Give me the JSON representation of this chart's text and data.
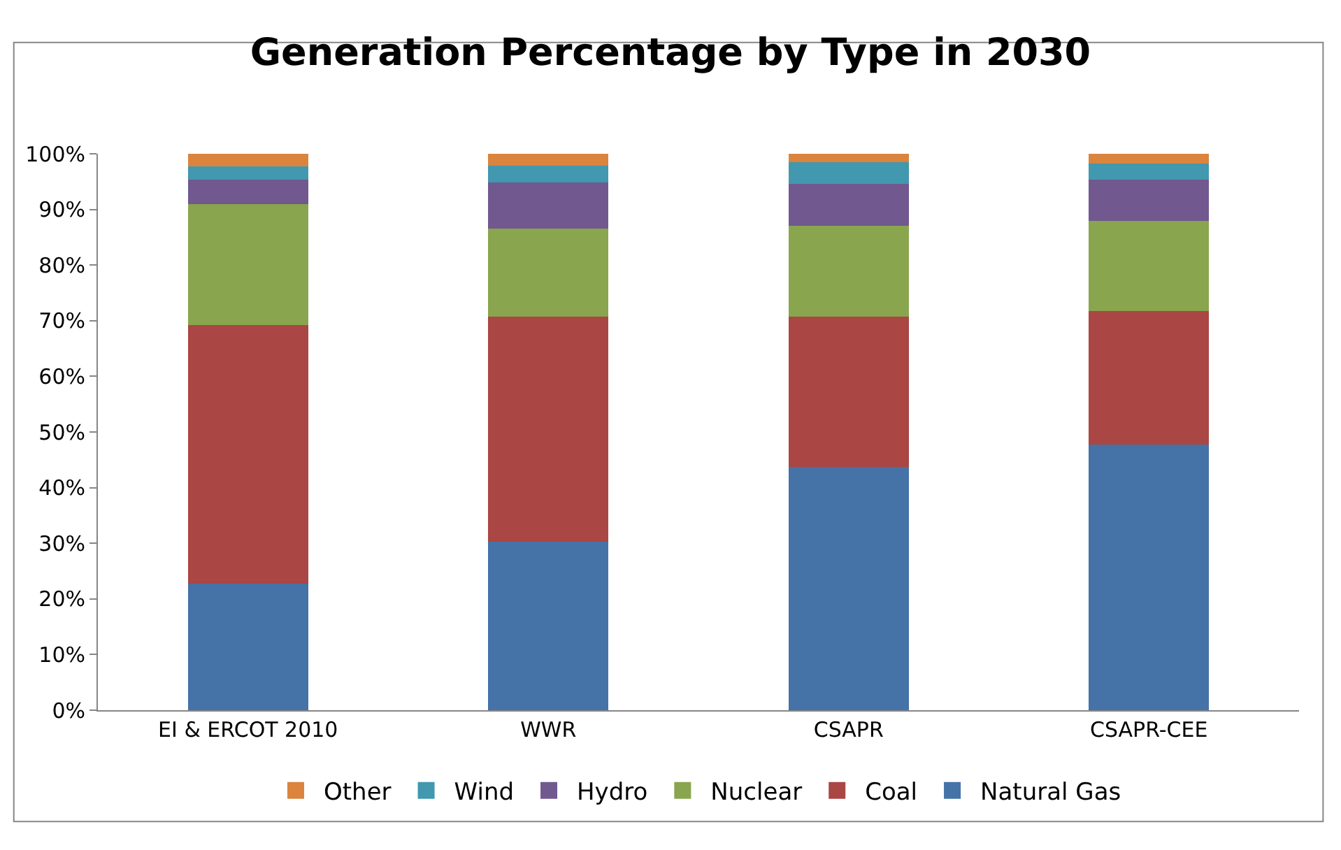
{
  "chart_data": {
    "type": "bar",
    "title": "Generation Percentage by Type in 2030",
    "categories": [
      "EI & ERCOT 2010",
      "WWR",
      "CSAPR",
      "CSAPR-CEE"
    ],
    "stacked": true,
    "series": [
      {
        "name": "Natural Gas",
        "color": "#4572a7",
        "values": [
          22.7,
          30.3,
          43.7,
          47.8
        ]
      },
      {
        "name": "Coal",
        "color": "#aa4643",
        "values": [
          46.5,
          40.4,
          27.0,
          23.9
        ]
      },
      {
        "name": "Nuclear",
        "color": "#89a54e",
        "values": [
          21.8,
          15.9,
          16.4,
          16.2
        ]
      },
      {
        "name": "Hydro",
        "color": "#71588f",
        "values": [
          4.4,
          8.3,
          7.5,
          7.5
        ]
      },
      {
        "name": "Wind",
        "color": "#4198af",
        "values": [
          2.3,
          3.0,
          3.9,
          2.8
        ]
      },
      {
        "name": "Other",
        "color": "#db843d",
        "values": [
          2.3,
          2.1,
          1.5,
          1.8
        ]
      }
    ],
    "ylim": [
      0,
      100
    ],
    "yticks": [
      {
        "value": 0,
        "label": "0%"
      },
      {
        "value": 10,
        "label": "10%"
      },
      {
        "value": 20,
        "label": "20%"
      },
      {
        "value": 30,
        "label": "30%"
      },
      {
        "value": 40,
        "label": "40%"
      },
      {
        "value": 50,
        "label": "50%"
      },
      {
        "value": 60,
        "label": "60%"
      },
      {
        "value": 70,
        "label": "70%"
      },
      {
        "value": 80,
        "label": "80%"
      },
      {
        "value": 90,
        "label": "90%"
      },
      {
        "value": 100,
        "label": "100%"
      }
    ],
    "grid": false,
    "legend": "bottom"
  }
}
